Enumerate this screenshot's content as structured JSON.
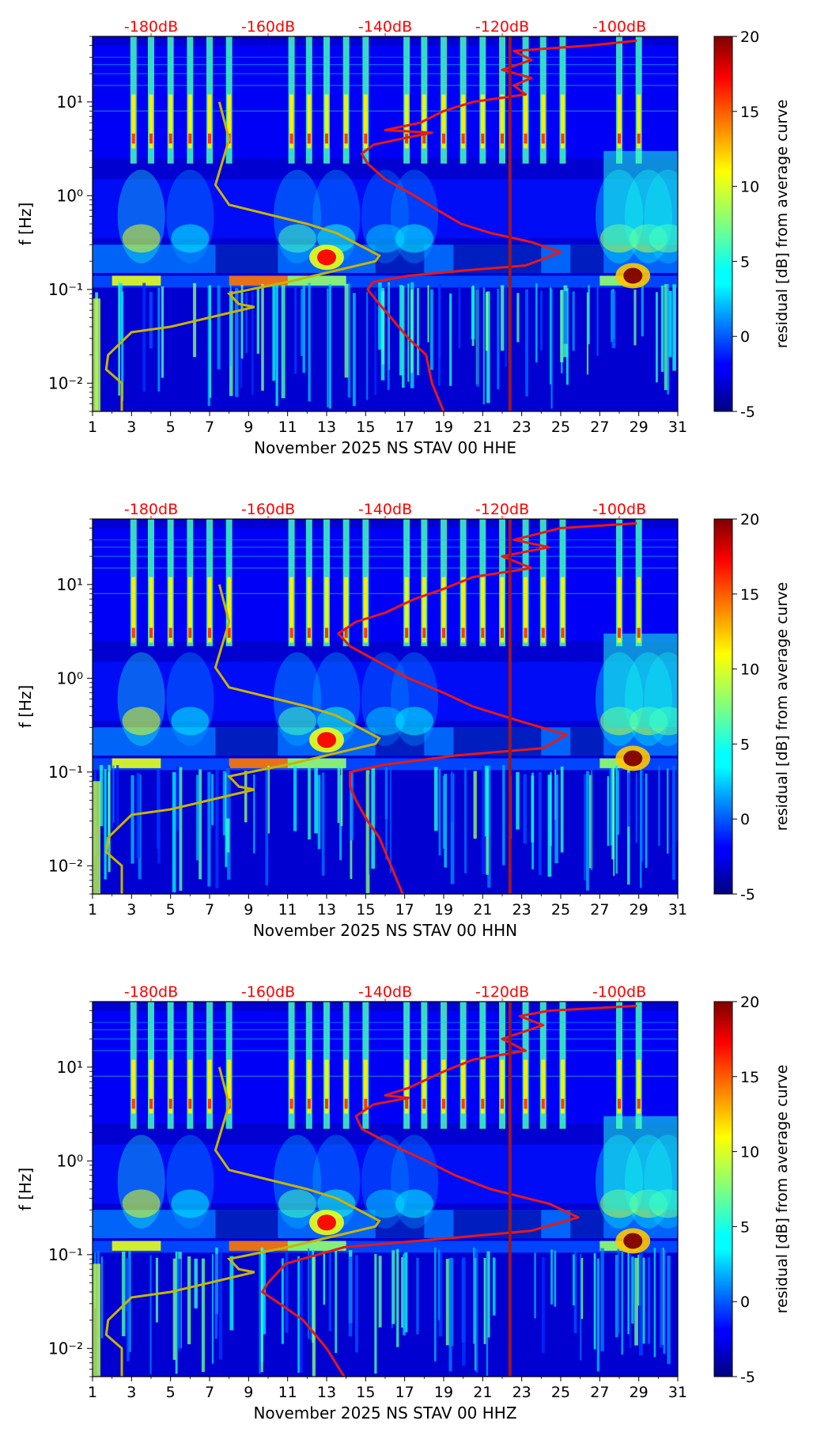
{
  "chart_data": [
    {
      "type": "heatmap",
      "xlabel": "November 2025 NS STAV 00 HHE",
      "ylabel": "f [Hz]",
      "x_ticks": [
        1,
        3,
        5,
        7,
        9,
        11,
        13,
        15,
        17,
        19,
        21,
        23,
        25,
        27,
        29,
        31
      ],
      "y_ticks": [
        {
          "value": 0.01,
          "label": "10⁻²"
        },
        {
          "value": 0.1,
          "label": "10⁻¹"
        },
        {
          "value": 1,
          "label": "10⁰"
        },
        {
          "value": 10,
          "label": "10¹"
        }
      ],
      "xlim": [
        1,
        31
      ],
      "ylim": [
        0.005,
        50
      ],
      "top_axis": {
        "labels": [
          "-180dB",
          "-160dB",
          "-140dB",
          "-120dB",
          "-100dB"
        ],
        "values": [
          -180,
          -160,
          -140,
          -120,
          -100
        ],
        "range": [
          -190,
          -90
        ],
        "color": "#ff0000"
      },
      "colorbar": {
        "label": "residual [dB] from average curve",
        "range": [
          -5,
          20
        ],
        "ticks": [
          -5,
          0,
          5,
          10,
          15,
          20
        ],
        "colormap": "jet"
      },
      "band_center_freq": 4,
      "red_curve": {
        "name": "average PSD",
        "color": "#e81818",
        "points": [
          [
            -97,
            45
          ],
          [
            -105,
            40
          ],
          [
            -118,
            35
          ],
          [
            -115,
            28
          ],
          [
            -120,
            22
          ],
          [
            -115,
            18
          ],
          [
            -118,
            15
          ],
          [
            -116,
            12
          ],
          [
            -125,
            10
          ],
          [
            -130,
            8
          ],
          [
            -134,
            6
          ],
          [
            -140,
            5
          ],
          [
            -132,
            4.7
          ],
          [
            -136,
            4.2
          ],
          [
            -142,
            3.5
          ],
          [
            -144,
            2.8
          ],
          [
            -143,
            2.2
          ],
          [
            -140,
            1.5
          ],
          [
            -135,
            1.0
          ],
          [
            -131,
            0.7
          ],
          [
            -127,
            0.5
          ],
          [
            -122,
            0.4
          ],
          [
            -115,
            0.32
          ],
          [
            -110,
            0.25
          ],
          [
            -116,
            0.18
          ],
          [
            -126,
            0.16
          ],
          [
            -136,
            0.14
          ],
          [
            -142,
            0.12
          ],
          [
            -143,
            0.1
          ],
          [
            -141,
            0.07
          ],
          [
            -139,
            0.05
          ],
          [
            -136,
            0.03
          ],
          [
            -133,
            0.02
          ],
          [
            -132,
            0.01
          ],
          [
            -130,
            0.005
          ]
        ]
      },
      "yellow_curve": {
        "name": "reference model",
        "color": "#c8b400",
        "points": [
          [
            7.5,
            10
          ],
          [
            8,
            4
          ],
          [
            7.3,
            1.3
          ],
          [
            8,
            0.8
          ],
          [
            12,
            0.5
          ],
          [
            13.5,
            0.4
          ],
          [
            15.7,
            0.23
          ],
          [
            15.5,
            0.2
          ],
          [
            11,
            0.12
          ],
          [
            8,
            0.09
          ],
          [
            8.5,
            0.07
          ],
          [
            9.3,
            0.065
          ],
          [
            5,
            0.04
          ],
          [
            3,
            0.035
          ],
          [
            1.8,
            0.02
          ],
          [
            1.7,
            0.014
          ],
          [
            2.5,
            0.01
          ],
          [
            2.5,
            0.005
          ]
        ]
      },
      "vertical_line": {
        "x": 22.4,
        "color": "#a01818"
      },
      "peak_events": [
        {
          "day": 13,
          "freq": 0.22,
          "strength": 17
        },
        {
          "day": 28.7,
          "freq": 0.14,
          "strength": 20
        }
      ]
    },
    {
      "type": "heatmap",
      "xlabel": "November 2025 NS STAV 00 HHN",
      "ylabel": "f [Hz]",
      "x_ticks": [
        1,
        3,
        5,
        7,
        9,
        11,
        13,
        15,
        17,
        19,
        21,
        23,
        25,
        27,
        29,
        31
      ],
      "y_ticks": [
        {
          "value": 0.01,
          "label": "10⁻²"
        },
        {
          "value": 0.1,
          "label": "10⁻¹"
        },
        {
          "value": 1,
          "label": "10⁰"
        },
        {
          "value": 10,
          "label": "10¹"
        }
      ],
      "xlim": [
        1,
        31
      ],
      "ylim": [
        0.005,
        50
      ],
      "top_axis": {
        "labels": [
          "-180dB",
          "-160dB",
          "-140dB",
          "-120dB",
          "-100dB"
        ],
        "values": [
          -180,
          -160,
          -140,
          -120,
          -100
        ],
        "range": [
          -190,
          -90
        ],
        "color": "#ff0000"
      },
      "colorbar": {
        "label": "residual [dB] from average curve",
        "range": [
          -5,
          20
        ],
        "ticks": [
          -5,
          0,
          5,
          10,
          15,
          20
        ],
        "colormap": "jet"
      },
      "band_center_freq": 3,
      "red_curve": {
        "name": "average PSD",
        "color": "#e81818",
        "points": [
          [
            -97,
            45
          ],
          [
            -110,
            40
          ],
          [
            -118,
            30
          ],
          [
            -112,
            25
          ],
          [
            -120,
            20
          ],
          [
            -115,
            15
          ],
          [
            -125,
            12
          ],
          [
            -130,
            9
          ],
          [
            -135,
            7
          ],
          [
            -140,
            5
          ],
          [
            -145,
            4
          ],
          [
            -148,
            3
          ],
          [
            -146,
            2.2
          ],
          [
            -142,
            1.6
          ],
          [
            -136,
            1.0
          ],
          [
            -130,
            0.7
          ],
          [
            -125,
            0.5
          ],
          [
            -117,
            0.35
          ],
          [
            -109,
            0.25
          ],
          [
            -113,
            0.18
          ],
          [
            -128,
            0.15
          ],
          [
            -140,
            0.12
          ],
          [
            -146,
            0.1
          ],
          [
            -146,
            0.07
          ],
          [
            -145,
            0.05
          ],
          [
            -143,
            0.03
          ],
          [
            -141,
            0.02
          ],
          [
            -139,
            0.01
          ],
          [
            -137,
            0.005
          ]
        ]
      },
      "yellow_curve": {
        "name": "reference model",
        "color": "#c8b400",
        "points": [
          [
            7.5,
            10
          ],
          [
            8,
            4
          ],
          [
            7.3,
            1.3
          ],
          [
            8,
            0.8
          ],
          [
            12,
            0.5
          ],
          [
            13.5,
            0.4
          ],
          [
            15.7,
            0.23
          ],
          [
            15.5,
            0.2
          ],
          [
            11,
            0.12
          ],
          [
            8,
            0.09
          ],
          [
            8.5,
            0.07
          ],
          [
            9.3,
            0.065
          ],
          [
            5,
            0.04
          ],
          [
            3,
            0.035
          ],
          [
            1.8,
            0.02
          ],
          [
            1.7,
            0.014
          ],
          [
            2.5,
            0.01
          ],
          [
            2.5,
            0.005
          ]
        ]
      },
      "vertical_line": {
        "x": 22.4,
        "color": "#a01818"
      },
      "peak_events": [
        {
          "day": 13,
          "freq": 0.22,
          "strength": 17
        },
        {
          "day": 28.7,
          "freq": 0.14,
          "strength": 20
        }
      ]
    },
    {
      "type": "heatmap",
      "xlabel": "November 2025 NS STAV 00 HHZ",
      "ylabel": "f [Hz]",
      "x_ticks": [
        1,
        3,
        5,
        7,
        9,
        11,
        13,
        15,
        17,
        19,
        21,
        23,
        25,
        27,
        29,
        31
      ],
      "y_ticks": [
        {
          "value": 0.01,
          "label": "10⁻²"
        },
        {
          "value": 0.1,
          "label": "10⁻¹"
        },
        {
          "value": 1,
          "label": "10⁰"
        },
        {
          "value": 10,
          "label": "10¹"
        }
      ],
      "xlim": [
        1,
        31
      ],
      "ylim": [
        0.005,
        50
      ],
      "top_axis": {
        "labels": [
          "-180dB",
          "-160dB",
          "-140dB",
          "-120dB",
          "-100dB"
        ],
        "values": [
          -180,
          -160,
          -140,
          -120,
          -100
        ],
        "range": [
          -190,
          -90
        ],
        "color": "#ff0000"
      },
      "colorbar": {
        "label": "residual [dB] from average curve",
        "range": [
          -5,
          20
        ],
        "ticks": [
          -5,
          0,
          5,
          10,
          15,
          20
        ],
        "colormap": "jet"
      },
      "band_center_freq": 4,
      "red_curve": {
        "name": "average PSD",
        "color": "#e81818",
        "points": [
          [
            -97,
            45
          ],
          [
            -112,
            40
          ],
          [
            -117,
            35
          ],
          [
            -113,
            28
          ],
          [
            -120,
            20
          ],
          [
            -116,
            15
          ],
          [
            -125,
            12
          ],
          [
            -130,
            9
          ],
          [
            -136,
            6
          ],
          [
            -140,
            5
          ],
          [
            -136,
            4.7
          ],
          [
            -142,
            4
          ],
          [
            -145,
            3
          ],
          [
            -144,
            2.2
          ],
          [
            -139,
            1.5
          ],
          [
            -133,
            1.0
          ],
          [
            -128,
            0.7
          ],
          [
            -122,
            0.5
          ],
          [
            -112,
            0.35
          ],
          [
            -107,
            0.25
          ],
          [
            -115,
            0.18
          ],
          [
            -129,
            0.15
          ],
          [
            -147,
            0.12
          ],
          [
            -157,
            0.08
          ],
          [
            -160,
            0.05
          ],
          [
            -161,
            0.04
          ],
          [
            -158,
            0.03
          ],
          [
            -154,
            0.02
          ],
          [
            -150,
            0.01
          ],
          [
            -147,
            0.005
          ]
        ]
      },
      "yellow_curve": {
        "name": "reference model",
        "color": "#c8b400",
        "points": [
          [
            7.5,
            10
          ],
          [
            8,
            4
          ],
          [
            7.3,
            1.3
          ],
          [
            8,
            0.8
          ],
          [
            12,
            0.5
          ],
          [
            13.5,
            0.4
          ],
          [
            15.7,
            0.23
          ],
          [
            15.5,
            0.2
          ],
          [
            11,
            0.12
          ],
          [
            8,
            0.09
          ],
          [
            8.5,
            0.07
          ],
          [
            9.3,
            0.065
          ],
          [
            5,
            0.04
          ],
          [
            3,
            0.035
          ],
          [
            1.8,
            0.02
          ],
          [
            1.7,
            0.014
          ],
          [
            2.5,
            0.01
          ],
          [
            2.5,
            0.005
          ]
        ]
      },
      "vertical_line": {
        "x": 22.4,
        "color": "#a01818"
      },
      "peak_events": [
        {
          "day": 13,
          "freq": 0.22,
          "strength": 17
        },
        {
          "day": 28.7,
          "freq": 0.14,
          "strength": 20
        }
      ]
    }
  ]
}
